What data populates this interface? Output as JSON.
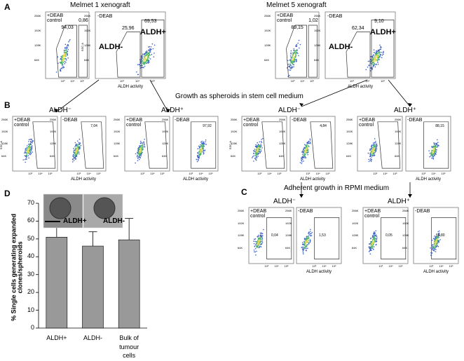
{
  "panel_labels": [
    "A",
    "B",
    "C",
    "D"
  ],
  "axis": {
    "y_label": "SSC-A",
    "x_label": "ALDH activity",
    "y_ticks": [
      "256K",
      "192K",
      "128K",
      "64K"
    ],
    "x_ticks": [
      "10³",
      "10⁴",
      "10⁵"
    ]
  },
  "panel_a": {
    "groups": [
      {
        "title": "Melmet 1 xenograft",
        "control": "+DEAB control",
        "control_gates": [
          "94,03",
          "0,86"
        ],
        "test": "-DEAB",
        "test_gates": [
          "25,96",
          "69,53"
        ],
        "neg": "ALDH-",
        "pos": "ALDH+"
      },
      {
        "title": "Melmet 5 xenograft",
        "control": "+DEAB control",
        "control_gates": [
          "89,15",
          "1,02"
        ],
        "test": "-DEAB",
        "test_gates": [
          "62,34",
          "9,10"
        ],
        "neg": "ALDH-",
        "pos": "ALDH+"
      }
    ]
  },
  "growth_label": "Growth as spheroids in stem cell medium",
  "panel_b": {
    "groups": [
      {
        "title": "ALDH⁻",
        "control": "+DEAB control",
        "test": "-DEAB",
        "value": "7,04"
      },
      {
        "title": "ALDH⁺",
        "control": "+DEAB control",
        "test": "-DEAB",
        "value": "97,92"
      },
      {
        "title": "ALDH⁻",
        "control": "+DEAB control",
        "test": "-DEAB",
        "value": "4,84"
      },
      {
        "title": "ALDH⁺",
        "control": "+DEAB control",
        "test": "-DEAB",
        "value": "88,15"
      }
    ]
  },
  "adherent_label": "Adherent growth in RPMI medium",
  "panel_c": {
    "groups": [
      {
        "title": "ALDH⁻",
        "control": "+DEAB control",
        "control_value": "0,04",
        "test": "-DEAB",
        "test_value": "1,53"
      },
      {
        "title": "ALDH⁺",
        "control": "+DEAB control",
        "control_value": "0,05",
        "test": "-DEAB",
        "test_value": "60,80"
      }
    ]
  },
  "chart_data": {
    "type": "bar",
    "ylabel": "% Single cells generating expanded clones/spheroids",
    "categories": [
      "ALDH+",
      "ALDH-",
      "Bulk of tumour cells"
    ],
    "values": [
      51,
      46,
      49.5
    ],
    "errors": [
      7,
      8,
      12
    ],
    "color": "#999999",
    "ylim": [
      0,
      70
    ],
    "yticks": [
      0,
      10,
      20,
      30,
      40,
      50,
      60,
      70
    ],
    "inset_labels": [
      "ALDH+",
      "ALDH-"
    ]
  }
}
